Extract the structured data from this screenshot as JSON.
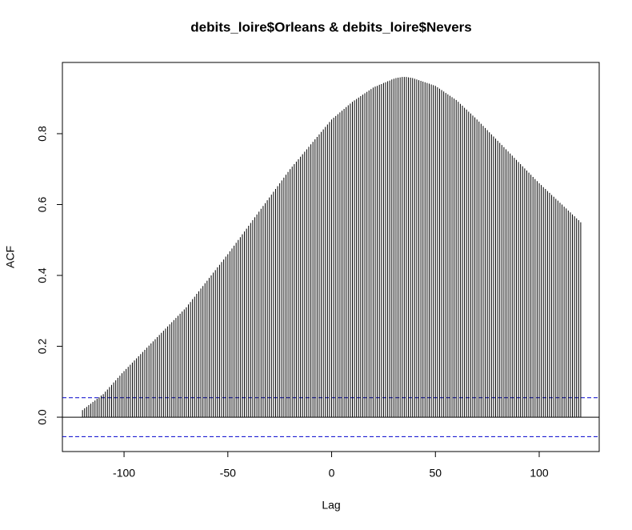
{
  "chart_data": {
    "type": "ccf",
    "title": "debits_loire$Orleans & debits_loire$Nevers",
    "x_label": "Lag",
    "y_label": "ACF",
    "xlim": [
      -129.7,
      128.9
    ],
    "ylim": [
      -0.097,
      1.001
    ],
    "xticks": [
      -100,
      -50,
      0,
      50,
      100
    ],
    "yticks": [
      {
        "value": 0,
        "label": "0.0"
      },
      0.2,
      0.4,
      0.6,
      0.8
    ],
    "color": "#000000",
    "conf_color": "#0000cc",
    "conf_limits": [
      -0.055,
      0.055
    ],
    "x": [
      -120,
      -119,
      -118,
      -117,
      -116,
      -115,
      -114,
      -113,
      -112,
      -111,
      -110,
      -109,
      -108,
      -107,
      -106,
      -105,
      -104,
      -103,
      -102,
      -101,
      -100,
      -99,
      -98,
      -97,
      -96,
      -95,
      -94,
      -93,
      -92,
      -91,
      -90,
      -89,
      -88,
      -87,
      -86,
      -85,
      -84,
      -83,
      -82,
      -81,
      -80,
      -79,
      -78,
      -77,
      -76,
      -75,
      -74,
      -73,
      -72,
      -71,
      -70,
      -69,
      -68,
      -67,
      -66,
      -65,
      -64,
      -63,
      -62,
      -61,
      -60,
      -59,
      -58,
      -57,
      -56,
      -55,
      -54,
      -53,
      -52,
      -51,
      -50,
      -49,
      -48,
      -47,
      -46,
      -45,
      -44,
      -43,
      -42,
      -41,
      -40,
      -39,
      -38,
      -37,
      -36,
      -35,
      -34,
      -33,
      -32,
      -31,
      -30,
      -29,
      -28,
      -27,
      -26,
      -25,
      -24,
      -23,
      -22,
      -21,
      -20,
      -19,
      -18,
      -17,
      -16,
      -15,
      -14,
      -13,
      -12,
      -11,
      -10,
      -9,
      -8,
      -7,
      -6,
      -5,
      -4,
      -3,
      -2,
      -1,
      0,
      1,
      2,
      3,
      4,
      5,
      6,
      7,
      8,
      9,
      10,
      11,
      12,
      13,
      14,
      15,
      16,
      17,
      18,
      19,
      20,
      21,
      22,
      23,
      24,
      25,
      26,
      27,
      28,
      29,
      30,
      31,
      32,
      33,
      34,
      35,
      36,
      37,
      38,
      39,
      40,
      41,
      42,
      43,
      44,
      45,
      46,
      47,
      48,
      49,
      50,
      51,
      52,
      53,
      54,
      55,
      56,
      57,
      58,
      59,
      60,
      61,
      62,
      63,
      64,
      65,
      66,
      67,
      68,
      69,
      70,
      71,
      72,
      73,
      74,
      75,
      76,
      77,
      78,
      79,
      80,
      81,
      82,
      83,
      84,
      85,
      86,
      87,
      88,
      89,
      90,
      91,
      92,
      93,
      94,
      95,
      96,
      97,
      98,
      99,
      100,
      101,
      102,
      103,
      104,
      105,
      106,
      107,
      108,
      109,
      110,
      111,
      112,
      113,
      114,
      115,
      116,
      117,
      118,
      119,
      120
    ],
    "values": [
      0.02,
      0.025,
      0.029,
      0.034,
      0.038,
      0.043,
      0.047,
      0.052,
      0.056,
      0.061,
      0.065,
      0.072,
      0.078,
      0.085,
      0.091,
      0.098,
      0.104,
      0.111,
      0.117,
      0.124,
      0.13,
      0.136,
      0.142,
      0.148,
      0.154,
      0.16,
      0.166,
      0.172,
      0.178,
      0.184,
      0.19,
      0.196,
      0.202,
      0.208,
      0.214,
      0.22,
      0.226,
      0.232,
      0.238,
      0.244,
      0.25,
      0.256,
      0.262,
      0.268,
      0.274,
      0.28,
      0.286,
      0.292,
      0.298,
      0.304,
      0.31,
      0.318,
      0.325,
      0.333,
      0.34,
      0.348,
      0.355,
      0.363,
      0.37,
      0.378,
      0.385,
      0.393,
      0.4,
      0.408,
      0.415,
      0.423,
      0.43,
      0.438,
      0.445,
      0.453,
      0.46,
      0.468,
      0.476,
      0.484,
      0.492,
      0.5,
      0.508,
      0.516,
      0.524,
      0.532,
      0.54,
      0.548,
      0.556,
      0.564,
      0.572,
      0.58,
      0.588,
      0.596,
      0.604,
      0.612,
      0.62,
      0.628,
      0.636,
      0.644,
      0.652,
      0.66,
      0.668,
      0.676,
      0.684,
      0.692,
      0.7,
      0.707,
      0.714,
      0.721,
      0.728,
      0.735,
      0.742,
      0.749,
      0.756,
      0.763,
      0.77,
      0.777,
      0.784,
      0.791,
      0.798,
      0.805,
      0.812,
      0.819,
      0.826,
      0.833,
      0.84,
      0.845,
      0.85,
      0.855,
      0.86,
      0.865,
      0.87,
      0.875,
      0.88,
      0.885,
      0.89,
      0.894,
      0.898,
      0.902,
      0.906,
      0.91,
      0.914,
      0.918,
      0.922,
      0.926,
      0.93,
      0.933,
      0.935,
      0.938,
      0.94,
      0.943,
      0.945,
      0.948,
      0.95,
      0.953,
      0.955,
      0.957,
      0.958,
      0.959,
      0.96,
      0.96,
      0.96,
      0.959,
      0.958,
      0.957,
      0.955,
      0.953,
      0.951,
      0.949,
      0.947,
      0.945,
      0.943,
      0.941,
      0.939,
      0.937,
      0.935,
      0.931,
      0.927,
      0.923,
      0.919,
      0.915,
      0.911,
      0.907,
      0.903,
      0.899,
      0.895,
      0.89,
      0.884,
      0.879,
      0.873,
      0.868,
      0.862,
      0.857,
      0.851,
      0.846,
      0.84,
      0.834,
      0.828,
      0.822,
      0.816,
      0.81,
      0.804,
      0.798,
      0.792,
      0.786,
      0.78,
      0.774,
      0.768,
      0.762,
      0.756,
      0.75,
      0.744,
      0.738,
      0.732,
      0.726,
      0.72,
      0.714,
      0.708,
      0.702,
      0.696,
      0.69,
      0.684,
      0.678,
      0.672,
      0.666,
      0.66,
      0.655,
      0.649,
      0.644,
      0.638,
      0.633,
      0.627,
      0.622,
      0.616,
      0.611,
      0.605,
      0.6,
      0.594,
      0.589,
      0.583,
      0.578,
      0.572,
      0.567,
      0.561,
      0.556,
      0.55
    ]
  }
}
